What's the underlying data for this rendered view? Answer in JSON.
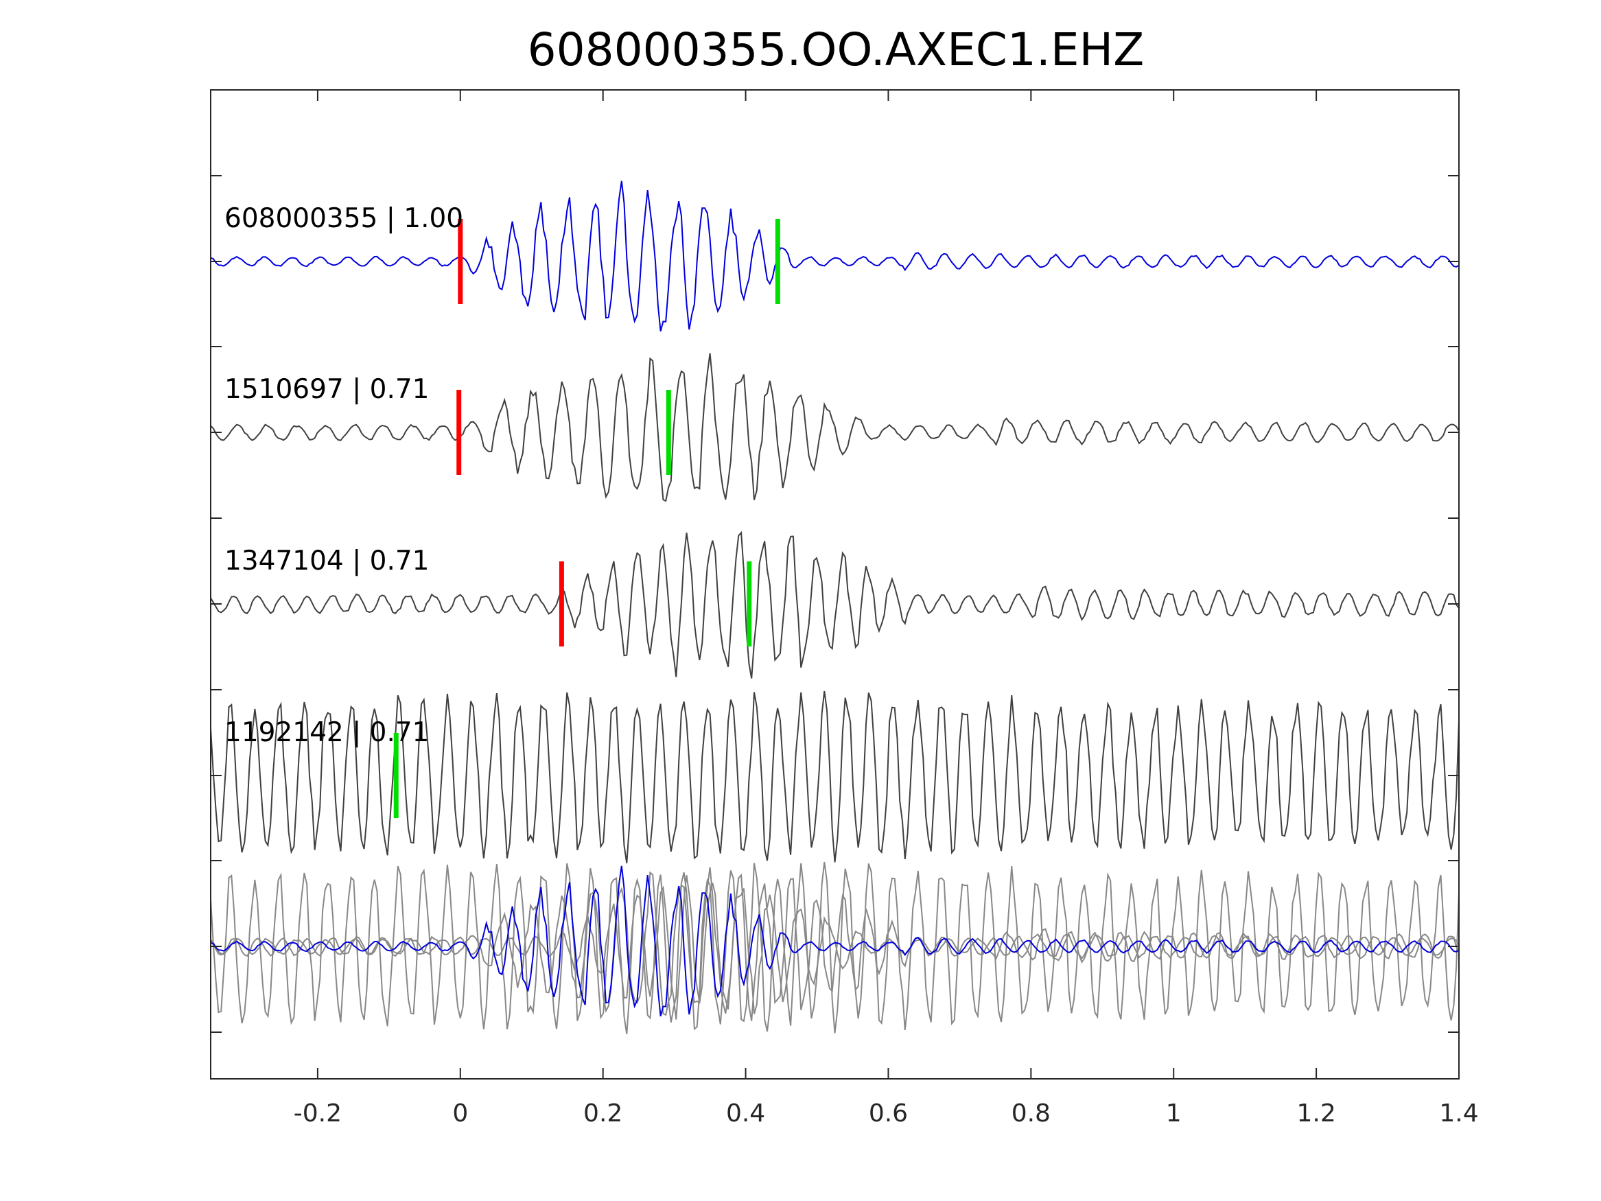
{
  "chart_data": {
    "type": "line",
    "title": "608000355.OO.AXEC1.EHZ",
    "xlabel": "",
    "ylabel": "",
    "xlim": [
      -0.35,
      1.4
    ],
    "x_ticks": [
      -0.2,
      0,
      0.2,
      0.4,
      0.6,
      0.8,
      1,
      1.2,
      1.4
    ],
    "x_tick_labels": [
      "-0.2",
      "0",
      "0.2",
      "0.4",
      "0.6",
      "0.8",
      "1",
      "1.2",
      "1.4"
    ],
    "grid": false,
    "legend": "none",
    "colors": {
      "template": "#0000dd",
      "match": "#404040",
      "overlay": "#888888",
      "p_pick": "#ff0000",
      "s_pick": "#00dd00"
    },
    "traces": [
      {
        "label": "608000355 | 1.00",
        "color_key": "template",
        "p_pick": 0.0,
        "s_pick": 0.445,
        "onset": 0.0,
        "end": 0.62
      },
      {
        "label": "1510697 | 0.71",
        "color_key": "match",
        "p_pick": -0.002,
        "s_pick": 0.292,
        "onset": 0.0,
        "end": 0.75
      },
      {
        "label": "1347104 | 0.71",
        "color_key": "match",
        "p_pick": 0.142,
        "s_pick": 0.405,
        "onset": 0.13,
        "end": 0.8
      },
      {
        "label": "1192142 | 0.71",
        "color_key": "match",
        "p_pick": null,
        "s_pick": -0.09,
        "onset": -0.35,
        "end": 1.4
      }
    ],
    "overlay": {
      "description_hidden": true
    }
  }
}
